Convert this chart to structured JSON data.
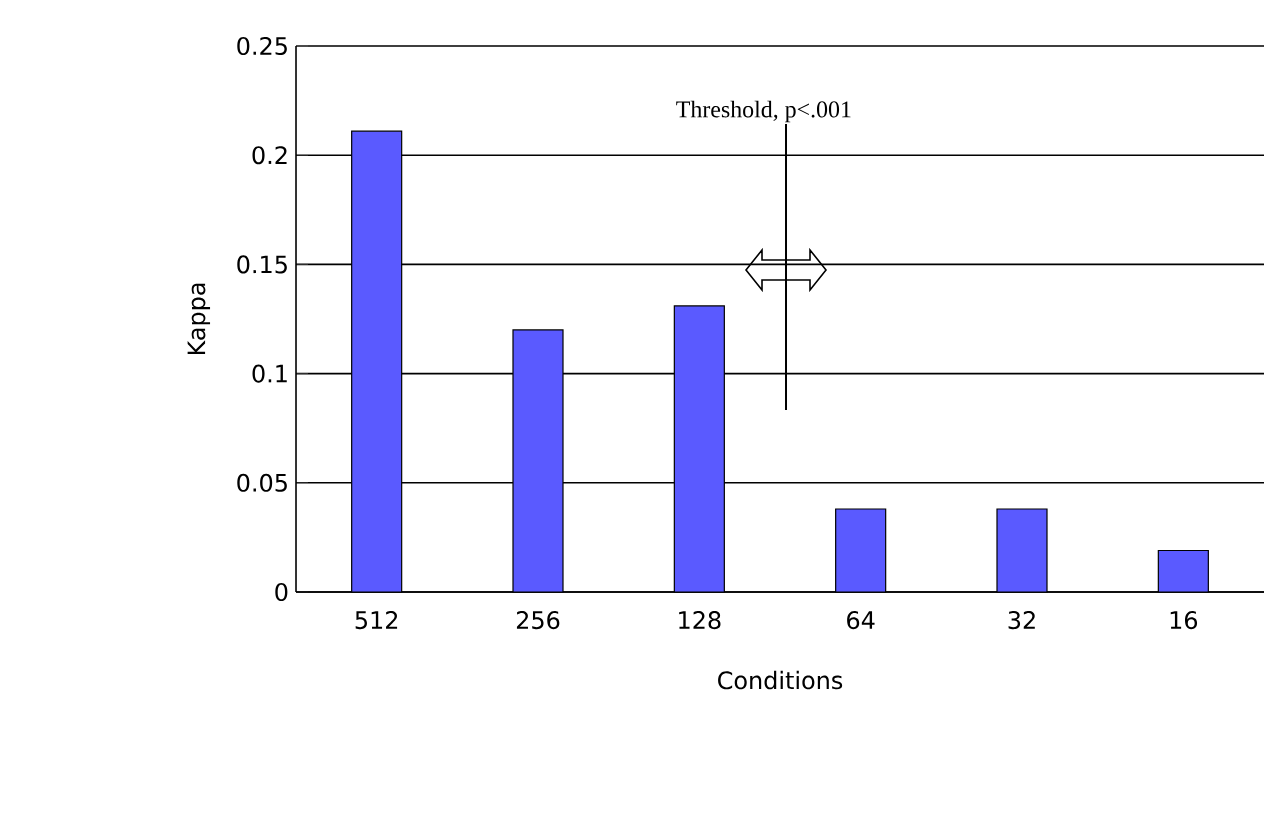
{
  "chart_data": {
    "type": "bar",
    "xlabel": "Conditions",
    "ylabel": "Kappa",
    "categories": [
      "512",
      "256",
      "128",
      "64",
      "32",
      "16"
    ],
    "values": [
      0.211,
      0.12,
      0.131,
      0.038,
      0.038,
      0.019
    ],
    "color": "#5a5aff",
    "ylim": [
      0,
      0.25
    ],
    "yticks": [
      0,
      0.05,
      0.1,
      0.15,
      0.2,
      0.25
    ],
    "grid": "y",
    "annotations": [
      "Threshold, p<.001"
    ]
  }
}
